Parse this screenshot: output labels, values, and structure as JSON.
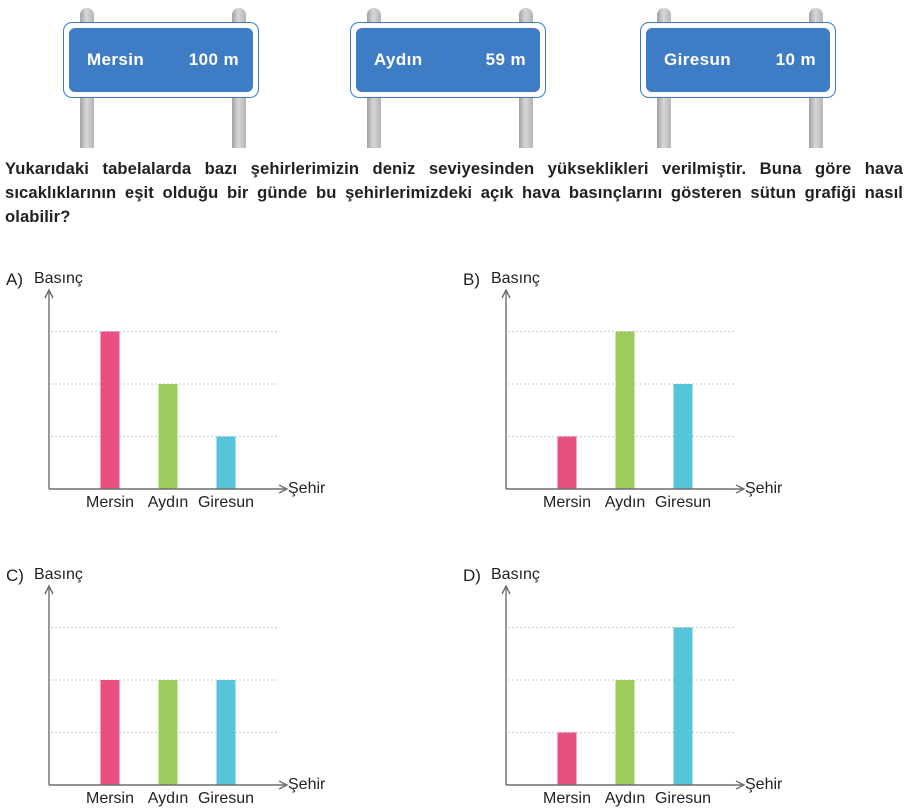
{
  "signs": [
    {
      "city": "Mersin",
      "elevation": "100 m"
    },
    {
      "city": "Aydın",
      "elevation": "59 m"
    },
    {
      "city": "Giresun",
      "elevation": "10 m"
    }
  ],
  "question": "Yukarıdaki tabelalarda bazı şehirlerimizin deniz seviyesinden yükseklikleri verilmiştir. Buna göre hava sıcaklıklarının eşit olduğu bir günde bu şehirlerimizdeki açık hava basınçlarını gösteren sütun grafiği nasıl olabilir?",
  "colors": {
    "mersin": "#e6517f",
    "aydin": "#9ccc5b",
    "giresun": "#56c5db",
    "axis": "#6d6e71",
    "grid": "#c8c9cb"
  },
  "chart_data": [
    {
      "type": "bar",
      "option": "A)",
      "ylabel": "Basınç",
      "xlabel": "Şehir",
      "categories": [
        "Mersin",
        "Aydın",
        "Giresun"
      ],
      "values": [
        3,
        2,
        1
      ],
      "ylim": [
        0,
        3
      ],
      "grid": true
    },
    {
      "type": "bar",
      "option": "B)",
      "ylabel": "Basınç",
      "xlabel": "Şehir",
      "categories": [
        "Mersin",
        "Aydın",
        "Giresun"
      ],
      "values": [
        1,
        3,
        2
      ],
      "ylim": [
        0,
        3
      ],
      "grid": true
    },
    {
      "type": "bar",
      "option": "C)",
      "ylabel": "Basınç",
      "xlabel": "Şehir",
      "categories": [
        "Mersin",
        "Aydın",
        "Giresun"
      ],
      "values": [
        2,
        2,
        2
      ],
      "ylim": [
        0,
        3
      ],
      "grid": true
    },
    {
      "type": "bar",
      "option": "D)",
      "ylabel": "Basınç",
      "xlabel": "Şehir",
      "categories": [
        "Mersin",
        "Aydın",
        "Giresun"
      ],
      "values": [
        1,
        2,
        3
      ],
      "ylim": [
        0,
        3
      ],
      "grid": true
    }
  ]
}
